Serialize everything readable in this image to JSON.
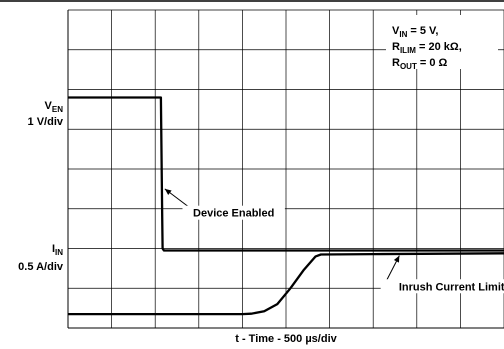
{
  "chart_data": {
    "type": "line",
    "title": "",
    "xlabel": "t - Time - 500 µs/div",
    "grid": true,
    "divisions": {
      "x": 10,
      "y": 8
    },
    "x_scale": {
      "unit": "µs",
      "per_div": 500
    },
    "x_range_us": [
      0,
      5000
    ],
    "conditions": [
      {
        "base": "V",
        "sub": "IN",
        "rest": " = 5 V,"
      },
      {
        "base": "R",
        "sub": "ILIM",
        "rest": " = 20 kΩ,"
      },
      {
        "base": "R",
        "sub": "OUT",
        "rest": " = 0 Ω"
      }
    ],
    "channels": [
      {
        "base": "V",
        "sub": "EN",
        "scale": "1 V/div",
        "points": [
          [
            0,
            5.8
          ],
          [
            1030,
            5.8
          ],
          [
            1065,
            5.8
          ],
          [
            1080,
            2.8
          ],
          [
            1085,
            2.0
          ],
          [
            1100,
            1.95
          ],
          [
            5000,
            1.95
          ]
        ]
      },
      {
        "base": "I",
        "sub": "IN",
        "scale": "0.5 A/div",
        "points": [
          [
            0,
            0.35
          ],
          [
            2000,
            0.35
          ],
          [
            2100,
            0.36
          ],
          [
            2250,
            0.42
          ],
          [
            2400,
            0.6
          ],
          [
            2550,
            1.0
          ],
          [
            2700,
            1.45
          ],
          [
            2840,
            1.8
          ],
          [
            2900,
            1.85
          ],
          [
            3500,
            1.86
          ],
          [
            5000,
            1.88
          ]
        ]
      }
    ],
    "annotations": [
      {
        "text": "Device Enabled",
        "x": 1110,
        "y": 3.5,
        "text_x": 1900,
        "text_y": 2.85
      },
      {
        "text": "Inrush Current Limit",
        "x": 3800,
        "y": 1.82,
        "text_x": 4400,
        "text_y": 1.0
      }
    ]
  }
}
